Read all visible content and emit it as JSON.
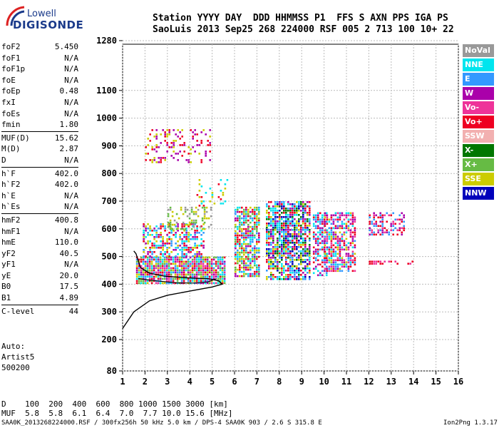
{
  "logo": {
    "line1": "Lowell",
    "line2": "DIGISONDE"
  },
  "header": {
    "row1": "Station YYYY DAY  DDD HHMMSS P1  FFS S AXN PPS IGA PS",
    "row2": "SaoLuis 2013 Sep25 268 224000 RSF 005 2 713 100 10+ 22"
  },
  "params": [
    {
      "k": "foF2",
      "v": "5.450"
    },
    {
      "k": "foF1",
      "v": "N/A"
    },
    {
      "k": "foF1p",
      "v": "N/A"
    },
    {
      "k": "foE",
      "v": "N/A"
    },
    {
      "k": "foEp",
      "v": "0.48"
    },
    {
      "k": "fxI",
      "v": "N/A"
    },
    {
      "k": "foEs",
      "v": "N/A"
    },
    {
      "k": "fmin",
      "v": "1.80"
    },
    {
      "k": "MUF(D)",
      "v": "15.62"
    },
    {
      "k": "M(D)",
      "v": "2.87"
    },
    {
      "k": "D",
      "v": "N/A"
    },
    {
      "k": "h`F",
      "v": "402.0"
    },
    {
      "k": "h`F2",
      "v": "402.0"
    },
    {
      "k": "h`E",
      "v": "N/A"
    },
    {
      "k": "h`Es",
      "v": "N/A"
    },
    {
      "k": "hmF2",
      "v": "400.8"
    },
    {
      "k": "hmF1",
      "v": "N/A"
    },
    {
      "k": "hmE",
      "v": "110.0"
    },
    {
      "k": "yF2",
      "v": "40.5"
    },
    {
      "k": "yF1",
      "v": "N/A"
    },
    {
      "k": "yE",
      "v": "20.0"
    },
    {
      "k": "B0",
      "v": "17.5"
    },
    {
      "k": "B1",
      "v": "4.89"
    },
    {
      "k": "C-level",
      "v": "44"
    }
  ],
  "auto": {
    "l1": "Auto:",
    "l2": "Artist5",
    "l3": "500200"
  },
  "legend": [
    {
      "label": "NoVal",
      "color": "#999999"
    },
    {
      "label": "NNE",
      "color": "#00e5ee"
    },
    {
      "label": "E",
      "color": "#3399ff"
    },
    {
      "label": "W",
      "color": "#aa00aa"
    },
    {
      "label": "Vo-",
      "color": "#ee3399"
    },
    {
      "label": "Vo+",
      "color": "#ee0022"
    },
    {
      "label": "SSW",
      "color": "#f2b0b0"
    },
    {
      "label": "X-",
      "color": "#007700"
    },
    {
      "label": "X+",
      "color": "#66bb44"
    },
    {
      "label": "SSE",
      "color": "#cccc00"
    },
    {
      "label": "NNW",
      "color": "#0000bb"
    }
  ],
  "bottom": {
    "d_row": "D    100  200  400  600  800 1000 1500 3000 [km]",
    "muf_row": "MUF  5.8  5.8  6.1  6.4  7.0  7.7 10.0 15.6 [MHz]"
  },
  "footer": {
    "left": "SAA0K_2013268224000.RSF / 300fx256h 50 kHz 5.0 km / DPS-4 SAA0K 903 / 2.6 S 315.8 E",
    "right": "Ion2Png 1.3.17"
  },
  "chart_data": {
    "type": "scatter",
    "title": "",
    "xlabel": "",
    "ylabel": "",
    "xlim": [
      1,
      16
    ],
    "ylim": [
      80,
      1280
    ],
    "x_ticks": [
      1,
      2,
      3,
      4,
      5,
      6,
      7,
      8,
      9,
      10,
      11,
      12,
      13,
      14,
      15,
      16
    ],
    "y_ticks": [
      80,
      200,
      300,
      400,
      500,
      600,
      700,
      800,
      900,
      1000,
      1100,
      1280
    ],
    "clusters": [
      {
        "x": [
          1.6,
          5.6
        ],
        "y": [
          400,
          500
        ],
        "density": 0.9,
        "colors": [
          "Vo-",
          "W",
          "Vo+",
          "NNE",
          "X+",
          "SSE",
          "E"
        ]
      },
      {
        "x": [
          1.9,
          4.6
        ],
        "y": [
          500,
          620
        ],
        "density": 0.5,
        "colors": [
          "Vo+",
          "W",
          "SSE",
          "E",
          "NNE"
        ]
      },
      {
        "x": [
          3.0,
          5.0
        ],
        "y": [
          600,
          680
        ],
        "density": 0.35,
        "colors": [
          "SSE",
          "X+",
          "NoVal"
        ]
      },
      {
        "x": [
          2.0,
          4.9
        ],
        "y": [
          840,
          960
        ],
        "density": 0.25,
        "colors": [
          "SSE",
          "Vo+",
          "W"
        ]
      },
      {
        "x": [
          4.3,
          5.8
        ],
        "y": [
          680,
          780
        ],
        "density": 0.15,
        "colors": [
          "Vo+",
          "NNE",
          "SSE"
        ]
      },
      {
        "x": [
          6.0,
          7.1
        ],
        "y": [
          430,
          680
        ],
        "density": 0.75,
        "colors": [
          "SSE",
          "Vo+",
          "W",
          "E",
          "NNE",
          "X+"
        ]
      },
      {
        "x": [
          7.4,
          9.4
        ],
        "y": [
          420,
          700
        ],
        "density": 0.75,
        "colors": [
          "E",
          "NNE",
          "W",
          "Vo+",
          "SSE",
          "X-",
          "NNW"
        ]
      },
      {
        "x": [
          9.5,
          10.1
        ],
        "y": [
          430,
          660
        ],
        "density": 0.6,
        "colors": [
          "E",
          "NNE",
          "Vo+",
          "W"
        ]
      },
      {
        "x": [
          10.0,
          11.4
        ],
        "y": [
          450,
          660
        ],
        "density": 0.65,
        "colors": [
          "Vo+",
          "W",
          "NNE",
          "SSE",
          "E",
          "Vo-"
        ]
      },
      {
        "x": [
          12.0,
          13.6
        ],
        "y": [
          575,
          660
        ],
        "density": 0.45,
        "colors": [
          "Vo+",
          "Vo-",
          "W",
          "E"
        ]
      },
      {
        "x": [
          12.0,
          14.0
        ],
        "y": [
          470,
          485
        ],
        "density": 0.4,
        "colors": [
          "Vo+",
          "Vo-"
        ]
      }
    ],
    "profile": [
      [
        1.0,
        240
      ],
      [
        1.5,
        300
      ],
      [
        2.2,
        340
      ],
      [
        3.0,
        360
      ],
      [
        4.0,
        375
      ],
      [
        5.0,
        390
      ],
      [
        5.45,
        400
      ],
      [
        5.3,
        412
      ],
      [
        4.8,
        420
      ],
      [
        4.2,
        422
      ],
      [
        3.5,
        425
      ],
      [
        2.8,
        430
      ],
      [
        2.2,
        440
      ],
      [
        1.8,
        460
      ],
      [
        1.6,
        510
      ],
      [
        1.5,
        520
      ]
    ],
    "trace": [
      [
        1.7,
        420
      ],
      [
        2.5,
        412
      ],
      [
        3.4,
        405
      ],
      [
        4.2,
        404
      ],
      [
        4.8,
        408
      ],
      [
        5.2,
        420
      ]
    ]
  }
}
